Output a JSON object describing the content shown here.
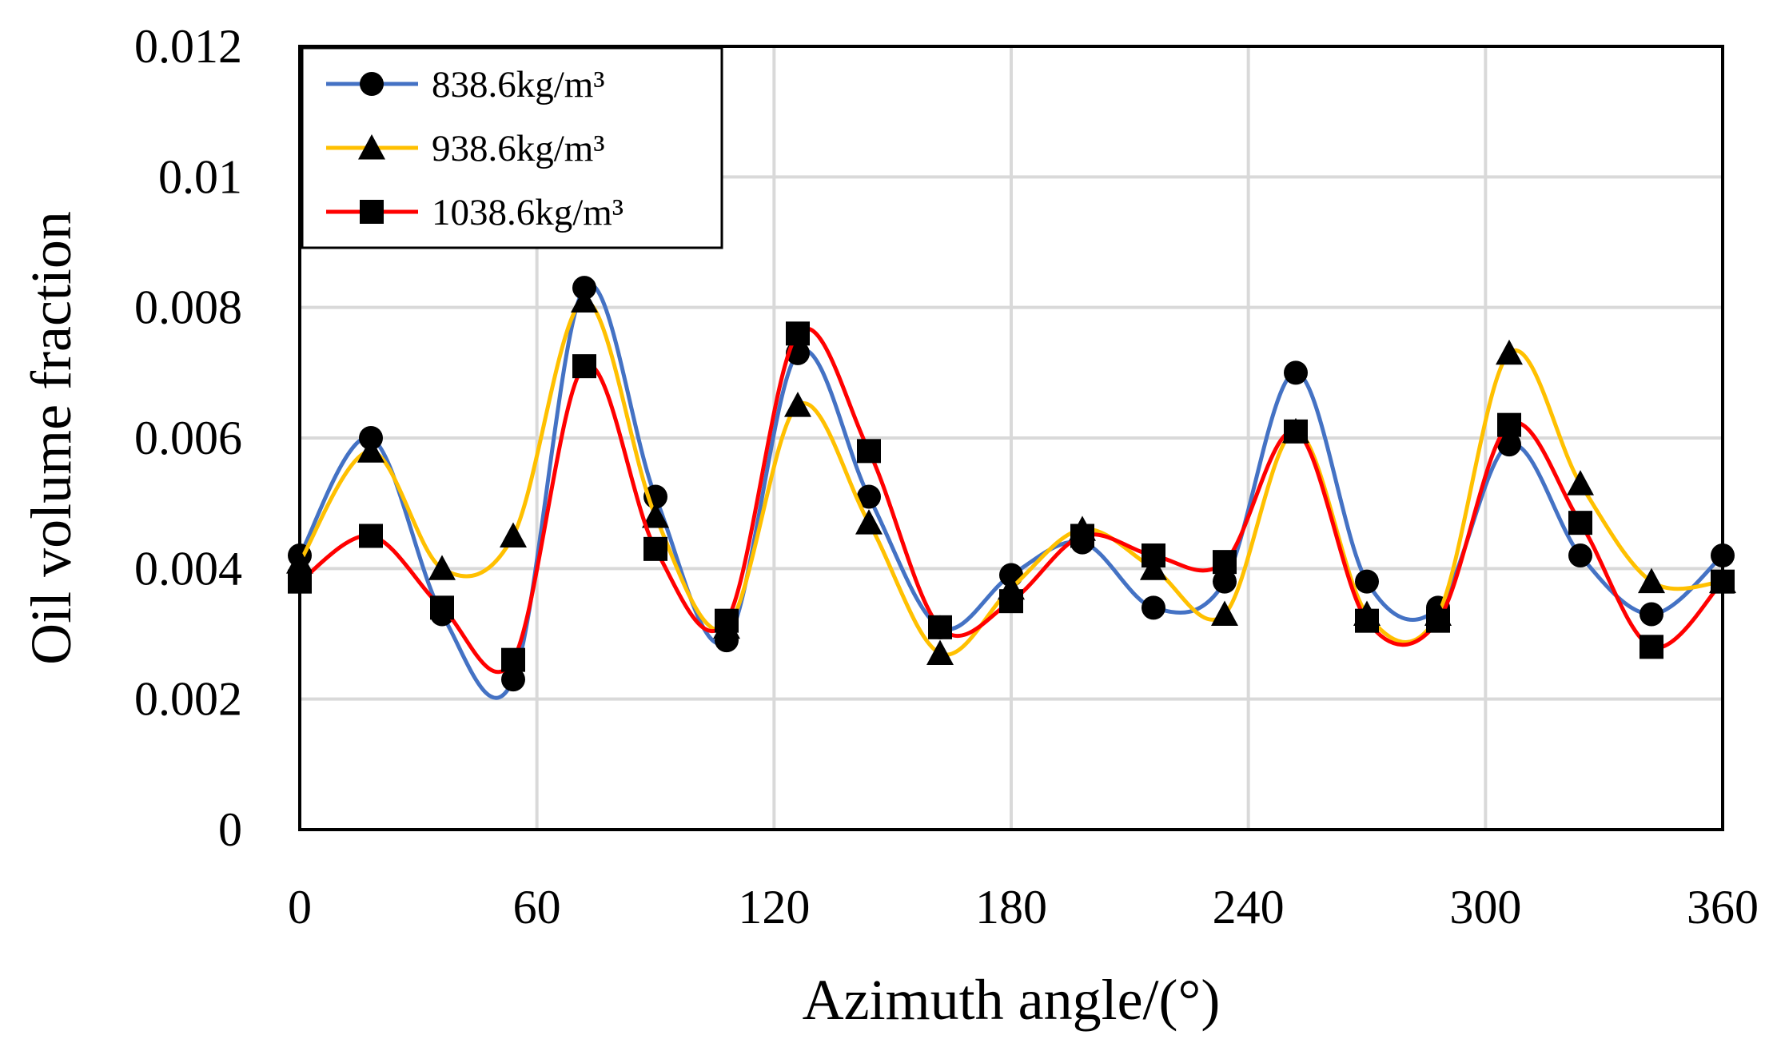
{
  "chart_data": {
    "type": "line",
    "smooth": true,
    "xlabel": "Azimuth angle/(°)",
    "ylabel": "Oil volume fraction",
    "xlim": [
      0,
      360
    ],
    "ylim": [
      0,
      0.012
    ],
    "xticks": [
      0,
      60,
      120,
      180,
      240,
      300,
      360
    ],
    "yticks": [
      0,
      0.002,
      0.004,
      0.006,
      0.008,
      0.01,
      0.012
    ],
    "xtick_labels": [
      "0",
      "60",
      "120",
      "180",
      "240",
      "300",
      "360"
    ],
    "ytick_labels": [
      "0",
      "0.002",
      "0.004",
      "0.006",
      "0.008",
      "0.01",
      "0.012"
    ],
    "grid": true,
    "legend_position": "top-left",
    "x": [
      0,
      18,
      36,
      54,
      72,
      90,
      108,
      126,
      144,
      162,
      180,
      198,
      216,
      234,
      252,
      270,
      288,
      306,
      324,
      342,
      360
    ],
    "series": [
      {
        "name": "838.6kg/m³",
        "marker": "circle",
        "color": "#4472C4",
        "values": [
          0.0042,
          0.006,
          0.0033,
          0.0023,
          0.0083,
          0.0051,
          0.0029,
          0.0073,
          0.0051,
          0.0031,
          0.0039,
          0.0044,
          0.0034,
          0.0038,
          0.007,
          0.0038,
          0.0034,
          0.0059,
          0.0042,
          0.0033,
          0.0042
        ]
      },
      {
        "name": "938.6kg/m³",
        "marker": "triangle",
        "color": "#FFC000",
        "values": [
          0.0041,
          0.0058,
          0.004,
          0.0045,
          0.0081,
          0.0048,
          0.0031,
          0.0065,
          0.0047,
          0.0027,
          0.0037,
          0.0046,
          0.004,
          0.0033,
          0.0061,
          0.0033,
          0.0033,
          0.0073,
          0.0053,
          0.0038,
          0.0038
        ]
      },
      {
        "name": "1038.6kg/m³",
        "marker": "square",
        "color": "#FF0000",
        "values": [
          0.0038,
          0.0045,
          0.0034,
          0.0026,
          0.0071,
          0.0043,
          0.0032,
          0.0076,
          0.0058,
          0.0031,
          0.0035,
          0.0045,
          0.0042,
          0.0041,
          0.0061,
          0.0032,
          0.0032,
          0.0062,
          0.0047,
          0.0028,
          0.0038
        ]
      }
    ]
  }
}
